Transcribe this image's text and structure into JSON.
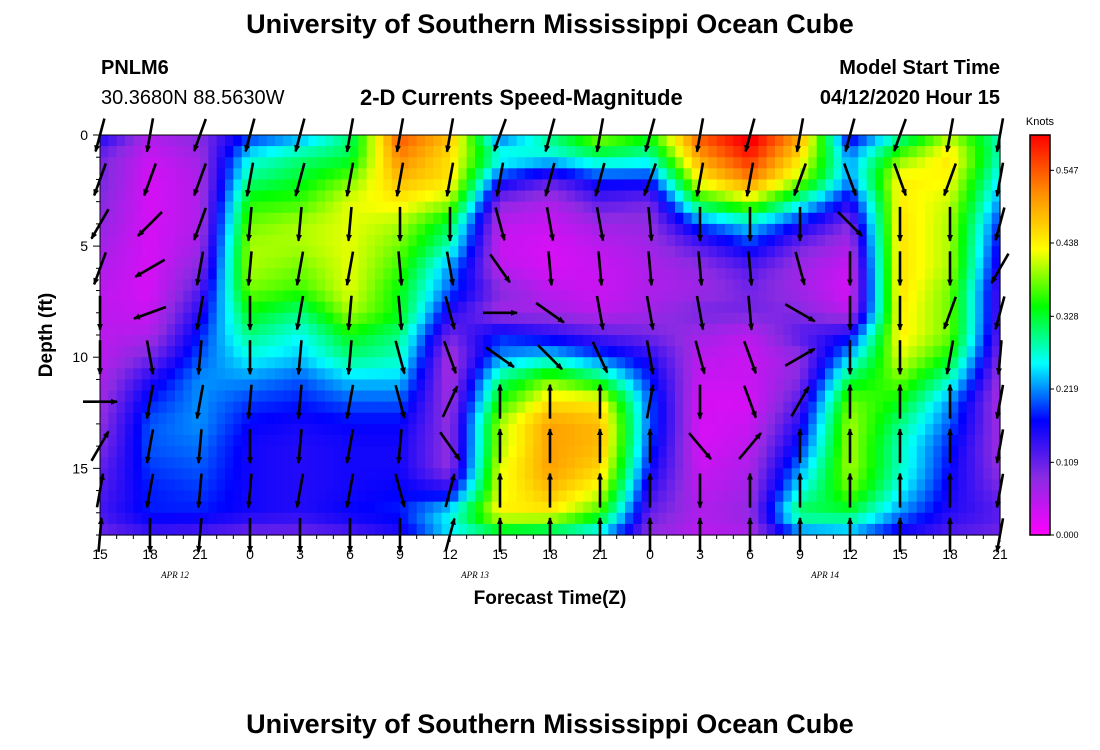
{
  "page": {
    "title_top": "University of Southern Mississippi Ocean Cube",
    "title_bottom": "University of Southern Mississippi Ocean Cube",
    "station_id": "PNLM6",
    "coordinates": "30.3680N 88.5630W",
    "plot_title": "2-D Currents Speed-Magnitude",
    "model_start_label": "Model Start Time",
    "model_start_value": "04/12/2020 Hour 15"
  },
  "chart_data": {
    "type": "heatmap",
    "title": "2-D Currents Speed-Magnitude",
    "xlabel": "Forecast Time(Z)",
    "ylabel": "Depth (ft)",
    "x_tick_labels": [
      "15",
      "18",
      "21",
      "0",
      "3",
      "6",
      "9",
      "12",
      "15",
      "18",
      "21",
      "0",
      "3",
      "6",
      "9",
      "12",
      "15",
      "18",
      "21"
    ],
    "date_labels": [
      {
        "text": "APR 12",
        "after_tick": 1
      },
      {
        "text": "APR 13",
        "after_tick": 7
      },
      {
        "text": "APR 14",
        "after_tick": 14
      }
    ],
    "y_ticks": [
      0,
      5,
      10,
      15
    ],
    "ylim": [
      0,
      18
    ],
    "colorbar": {
      "unit": "Knots",
      "ticks": [
        "0.547",
        "0.438",
        "0.328",
        "0.219",
        "0.109",
        "0.000"
      ],
      "range": [
        0,
        0.6
      ]
    },
    "colormap": [
      "#ff00ff",
      "#8a2be2",
      "#0000ff",
      "#00ffff",
      "#00ff00",
      "#ffff00",
      "#ff8c00",
      "#ff0000"
    ],
    "grid": false,
    "depth_rows": [
      0,
      1,
      2,
      3,
      4,
      5,
      6,
      7,
      8,
      9,
      10,
      11,
      12,
      13,
      14,
      15,
      16,
      17,
      18
    ],
    "time_columns": [
      0,
      3,
      6,
      9,
      12,
      15,
      18,
      21,
      24,
      27,
      30,
      33,
      36,
      39,
      42,
      45,
      48,
      51,
      54
    ],
    "speed_knots": [
      [
        0.16,
        0.06,
        0.09,
        0.18,
        0.22,
        0.3,
        0.55,
        0.48,
        0.2,
        0.3,
        0.4,
        0.35,
        0.55,
        0.62,
        0.5,
        0.15,
        0.28,
        0.4,
        0.28
      ],
      [
        0.1,
        0.04,
        0.07,
        0.26,
        0.3,
        0.32,
        0.52,
        0.45,
        0.28,
        0.26,
        0.3,
        0.28,
        0.5,
        0.58,
        0.45,
        0.22,
        0.38,
        0.45,
        0.28
      ],
      [
        0.1,
        0.03,
        0.06,
        0.3,
        0.33,
        0.38,
        0.48,
        0.45,
        0.18,
        0.12,
        0.18,
        0.18,
        0.44,
        0.52,
        0.4,
        0.22,
        0.44,
        0.43,
        0.25
      ],
      [
        0.09,
        0.03,
        0.06,
        0.35,
        0.36,
        0.42,
        0.44,
        0.4,
        0.09,
        0.06,
        0.12,
        0.1,
        0.34,
        0.4,
        0.28,
        0.15,
        0.44,
        0.41,
        0.22
      ],
      [
        0.08,
        0.03,
        0.06,
        0.38,
        0.4,
        0.42,
        0.4,
        0.32,
        0.05,
        0.04,
        0.07,
        0.08,
        0.2,
        0.25,
        0.17,
        0.09,
        0.45,
        0.4,
        0.18
      ],
      [
        0.07,
        0.03,
        0.07,
        0.4,
        0.4,
        0.42,
        0.38,
        0.28,
        0.04,
        0.03,
        0.05,
        0.07,
        0.12,
        0.18,
        0.1,
        0.06,
        0.45,
        0.4,
        0.16
      ],
      [
        0.06,
        0.03,
        0.09,
        0.4,
        0.38,
        0.42,
        0.36,
        0.22,
        0.05,
        0.03,
        0.04,
        0.06,
        0.08,
        0.12,
        0.07,
        0.04,
        0.45,
        0.4,
        0.14
      ],
      [
        0.05,
        0.03,
        0.12,
        0.38,
        0.36,
        0.42,
        0.34,
        0.2,
        0.09,
        0.05,
        0.04,
        0.06,
        0.07,
        0.1,
        0.07,
        0.03,
        0.45,
        0.38,
        0.12
      ],
      [
        0.05,
        0.04,
        0.15,
        0.34,
        0.3,
        0.4,
        0.34,
        0.15,
        0.07,
        0.07,
        0.05,
        0.07,
        0.1,
        0.1,
        0.09,
        0.05,
        0.44,
        0.38,
        0.12
      ],
      [
        0.05,
        0.06,
        0.18,
        0.3,
        0.26,
        0.34,
        0.3,
        0.1,
        0.18,
        0.15,
        0.12,
        0.1,
        0.07,
        0.05,
        0.12,
        0.16,
        0.44,
        0.38,
        0.11
      ],
      [
        0.05,
        0.1,
        0.2,
        0.26,
        0.24,
        0.3,
        0.28,
        0.06,
        0.22,
        0.25,
        0.2,
        0.15,
        0.05,
        0.04,
        0.08,
        0.24,
        0.42,
        0.34,
        0.09
      ],
      [
        0.06,
        0.15,
        0.22,
        0.22,
        0.2,
        0.24,
        0.24,
        0.06,
        0.3,
        0.38,
        0.32,
        0.18,
        0.04,
        0.04,
        0.09,
        0.32,
        0.38,
        0.28,
        0.07
      ],
      [
        0.07,
        0.18,
        0.22,
        0.19,
        0.18,
        0.2,
        0.2,
        0.07,
        0.35,
        0.45,
        0.44,
        0.2,
        0.03,
        0.03,
        0.12,
        0.38,
        0.34,
        0.22,
        0.06
      ],
      [
        0.08,
        0.2,
        0.22,
        0.17,
        0.16,
        0.17,
        0.17,
        0.08,
        0.4,
        0.5,
        0.48,
        0.2,
        0.03,
        0.04,
        0.15,
        0.4,
        0.3,
        0.2,
        0.07
      ],
      [
        0.09,
        0.2,
        0.21,
        0.16,
        0.15,
        0.16,
        0.16,
        0.08,
        0.4,
        0.5,
        0.48,
        0.19,
        0.03,
        0.05,
        0.18,
        0.4,
        0.28,
        0.18,
        0.07
      ],
      [
        0.11,
        0.19,
        0.2,
        0.16,
        0.15,
        0.16,
        0.16,
        0.08,
        0.42,
        0.5,
        0.46,
        0.17,
        0.04,
        0.06,
        0.22,
        0.4,
        0.28,
        0.17,
        0.08
      ],
      [
        0.12,
        0.18,
        0.19,
        0.16,
        0.15,
        0.16,
        0.17,
        0.15,
        0.42,
        0.48,
        0.42,
        0.14,
        0.05,
        0.07,
        0.26,
        0.38,
        0.26,
        0.16,
        0.1
      ],
      [
        0.13,
        0.18,
        0.18,
        0.16,
        0.15,
        0.17,
        0.18,
        0.26,
        0.44,
        0.44,
        0.36,
        0.11,
        0.06,
        0.08,
        0.32,
        0.32,
        0.22,
        0.15,
        0.12
      ],
      [
        0.1,
        0.13,
        0.12,
        0.1,
        0.1,
        0.12,
        0.15,
        0.25,
        0.3,
        0.28,
        0.24,
        0.08,
        0.05,
        0.06,
        0.2,
        0.22,
        0.15,
        0.12,
        0.1
      ]
    ],
    "vector_depths": [
      0,
      2,
      4,
      6,
      8,
      10,
      12,
      14,
      16,
      18
    ],
    "direction_deg": [
      [
        195,
        190,
        200,
        195,
        195,
        190,
        190,
        190,
        200,
        195,
        190,
        195,
        190,
        195,
        190,
        195,
        200,
        190,
        190
      ],
      [
        200,
        200,
        200,
        190,
        195,
        190,
        190,
        190,
        190,
        195,
        195,
        200,
        190,
        190,
        200,
        160,
        160,
        200,
        190
      ],
      [
        210,
        225,
        200,
        185,
        185,
        185,
        180,
        180,
        165,
        170,
        170,
        175,
        180,
        180,
        180,
        135,
        180,
        180,
        195
      ],
      [
        200,
        240,
        190,
        185,
        190,
        190,
        175,
        170,
        145,
        175,
        175,
        175,
        175,
        175,
        165,
        180,
        180,
        180,
        210
      ],
      [
        180,
        250,
        190,
        180,
        190,
        185,
        175,
        165,
        90,
        125,
        170,
        170,
        170,
        175,
        120,
        180,
        180,
        200,
        195
      ],
      [
        180,
        170,
        185,
        180,
        185,
        185,
        165,
        160,
        125,
        135,
        155,
        170,
        165,
        160,
        60,
        180,
        180,
        190,
        185
      ],
      [
        90,
        190,
        190,
        185,
        185,
        190,
        165,
        25,
        0,
        0,
        0,
        10,
        180,
        160,
        30,
        0,
        0,
        0,
        190
      ],
      [
        30,
        190,
        185,
        180,
        185,
        190,
        185,
        145,
        0,
        0,
        0,
        0,
        140,
        40,
        0,
        0,
        0,
        0,
        190
      ],
      [
        10,
        190,
        185,
        185,
        190,
        190,
        165,
        15,
        0,
        0,
        0,
        0,
        180,
        0,
        0,
        0,
        0,
        0,
        190
      ],
      [
        5,
        180,
        185,
        180,
        180,
        180,
        180,
        15,
        0,
        0,
        0,
        0,
        0,
        0,
        0,
        0,
        0,
        0,
        190
      ]
    ]
  }
}
